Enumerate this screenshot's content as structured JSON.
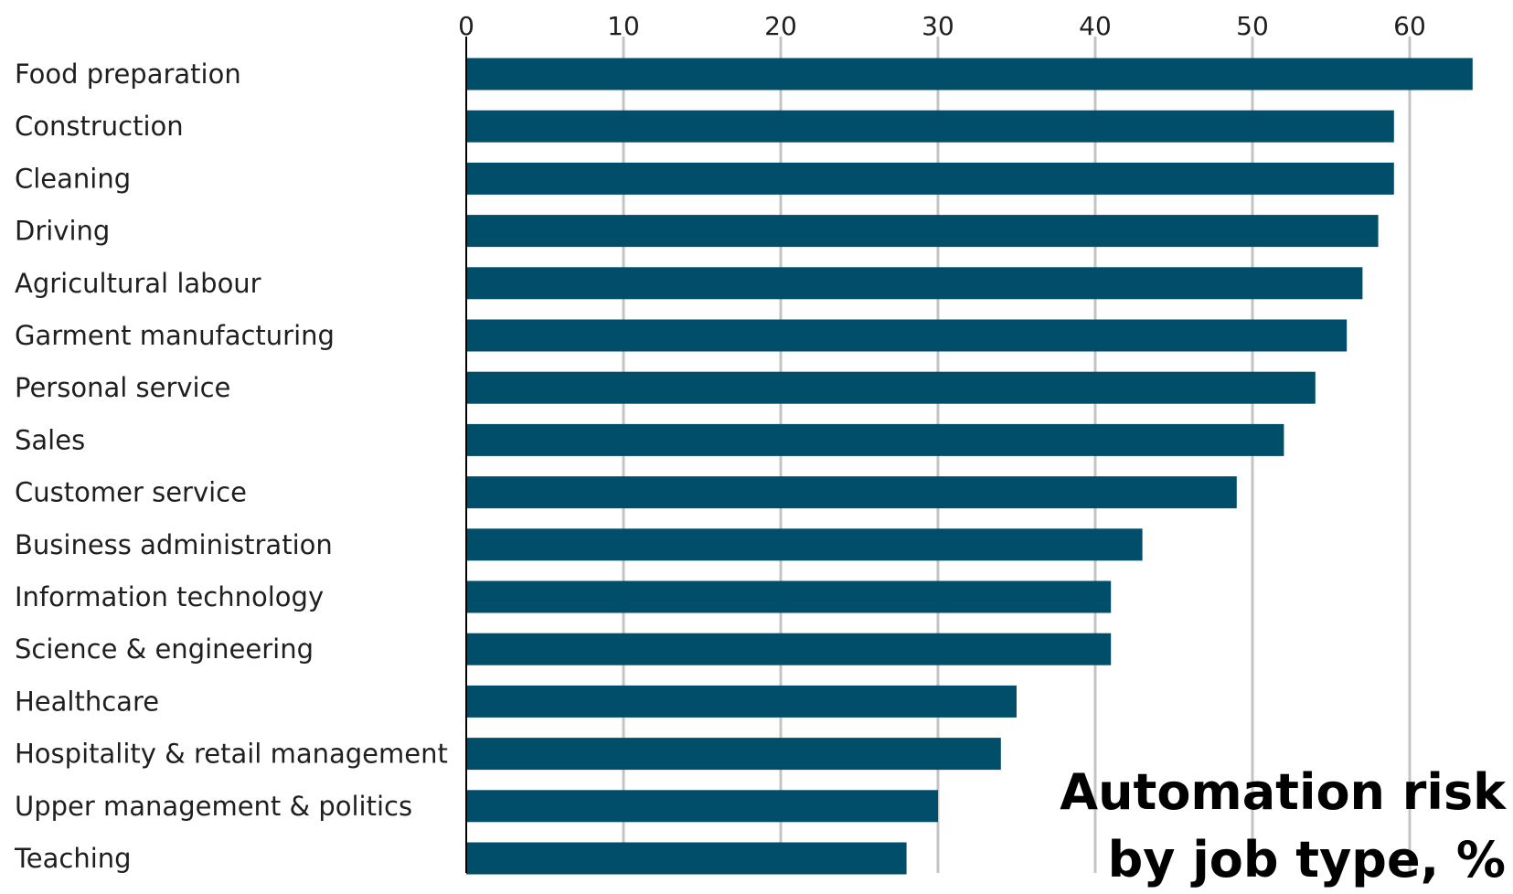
{
  "chart_data": {
    "type": "bar",
    "orientation": "horizontal",
    "title": "Automation risk",
    "subtitle": "by job type, %",
    "categories": [
      "Food preparation",
      "Construction",
      "Cleaning",
      "Driving",
      "Agricultural labour",
      "Garment manufacturing",
      "Personal service",
      "Sales",
      "Customer service",
      "Business administration",
      "Information technology",
      "Science & engineering",
      "Healthcare",
      "Hospitality & retail management",
      "Upper management & politics",
      "Teaching"
    ],
    "values": [
      64,
      59,
      59,
      58,
      57,
      56,
      54,
      52,
      49,
      43,
      41,
      41,
      35,
      34,
      30,
      28
    ],
    "xlim": [
      0,
      66
    ],
    "xticks": [
      "0",
      "10",
      "20",
      "30",
      "40",
      "50",
      "60"
    ],
    "xtick_values": [
      0,
      10,
      20,
      30,
      40,
      50,
      60
    ],
    "grid": "vertical",
    "x_axis_position": "top",
    "colors": {
      "bar": "#004e6a",
      "grid": "#c4c4c4"
    }
  }
}
